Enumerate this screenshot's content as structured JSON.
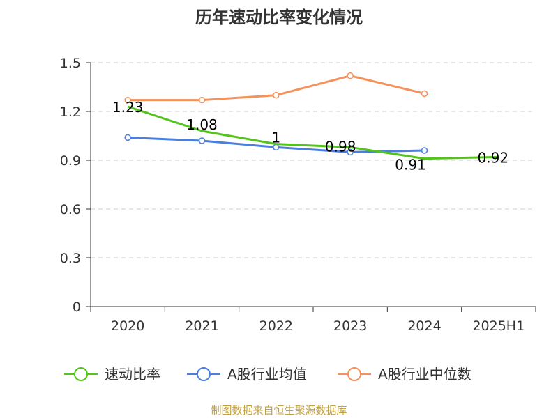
{
  "chart_data": {
    "type": "line",
    "title": "历年速动比率变化情况",
    "categories": [
      "2020",
      "2021",
      "2022",
      "2023",
      "2024",
      "2025H1"
    ],
    "ylim": [
      0,
      1.5
    ],
    "yticks": [
      "0",
      "0.3",
      "0.6",
      "0.9",
      "1.2",
      "1.5"
    ],
    "grid": true,
    "legend_position": "bottom",
    "series": [
      {
        "name": "速动比率",
        "color": "#52c41a",
        "values": [
          1.23,
          1.08,
          1.0,
          0.98,
          0.91,
          0.92
        ],
        "labels": [
          "1.23",
          "1.08",
          "1",
          "0.98",
          "0.91",
          "0.92"
        ]
      },
      {
        "name": "A股行业均值",
        "color": "#4a7fe0",
        "values": [
          1.04,
          1.02,
          0.98,
          0.95,
          0.96,
          null
        ]
      },
      {
        "name": "A股行业中位数",
        "color": "#f5915a",
        "values": [
          1.27,
          1.27,
          1.3,
          1.42,
          1.31,
          null
        ]
      }
    ],
    "source": "制图数据来自恒生聚源数据库"
  }
}
